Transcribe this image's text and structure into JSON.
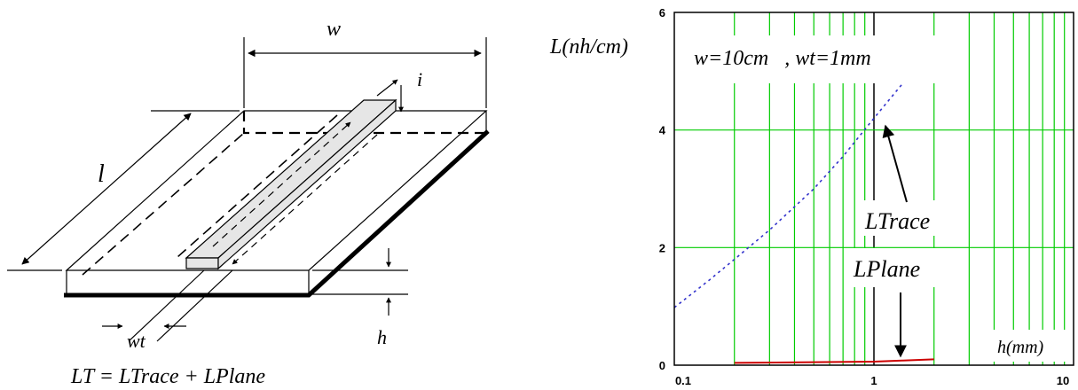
{
  "diagram": {
    "labels": {
      "w": "w",
      "i": "i",
      "l": "l",
      "wt": "wt",
      "h": "h"
    },
    "formula": "LT = LTrace + LPlane"
  },
  "chart_data": {
    "type": "line",
    "ylabel": "L(nh/cm)",
    "xlabel": "h(mm)",
    "annotation": "w=10cm   , wt=1mm",
    "x_scale": "log",
    "xlim": [
      0.1,
      10
    ],
    "ylim": [
      0,
      6
    ],
    "x_ticks": [
      "0.1",
      "1",
      "10"
    ],
    "y_ticks": [
      "0",
      "2",
      "4",
      "6"
    ],
    "grid": true,
    "grid_color": "#00cc00",
    "series": [
      {
        "name": "LTrace",
        "color": "#3333cc",
        "style": "dashed",
        "x": [
          0.1,
          0.15,
          0.2,
          0.3,
          0.5,
          0.7,
          1.0,
          1.4
        ],
        "y": [
          0.98,
          1.45,
          1.8,
          2.3,
          3.0,
          3.55,
          4.2,
          4.8
        ]
      },
      {
        "name": "LPlane",
        "color": "#cc0000",
        "style": "solid",
        "x": [
          0.2,
          0.5,
          1.0,
          1.4,
          2.0
        ],
        "y": [
          0.04,
          0.05,
          0.06,
          0.08,
          0.1
        ]
      }
    ]
  }
}
